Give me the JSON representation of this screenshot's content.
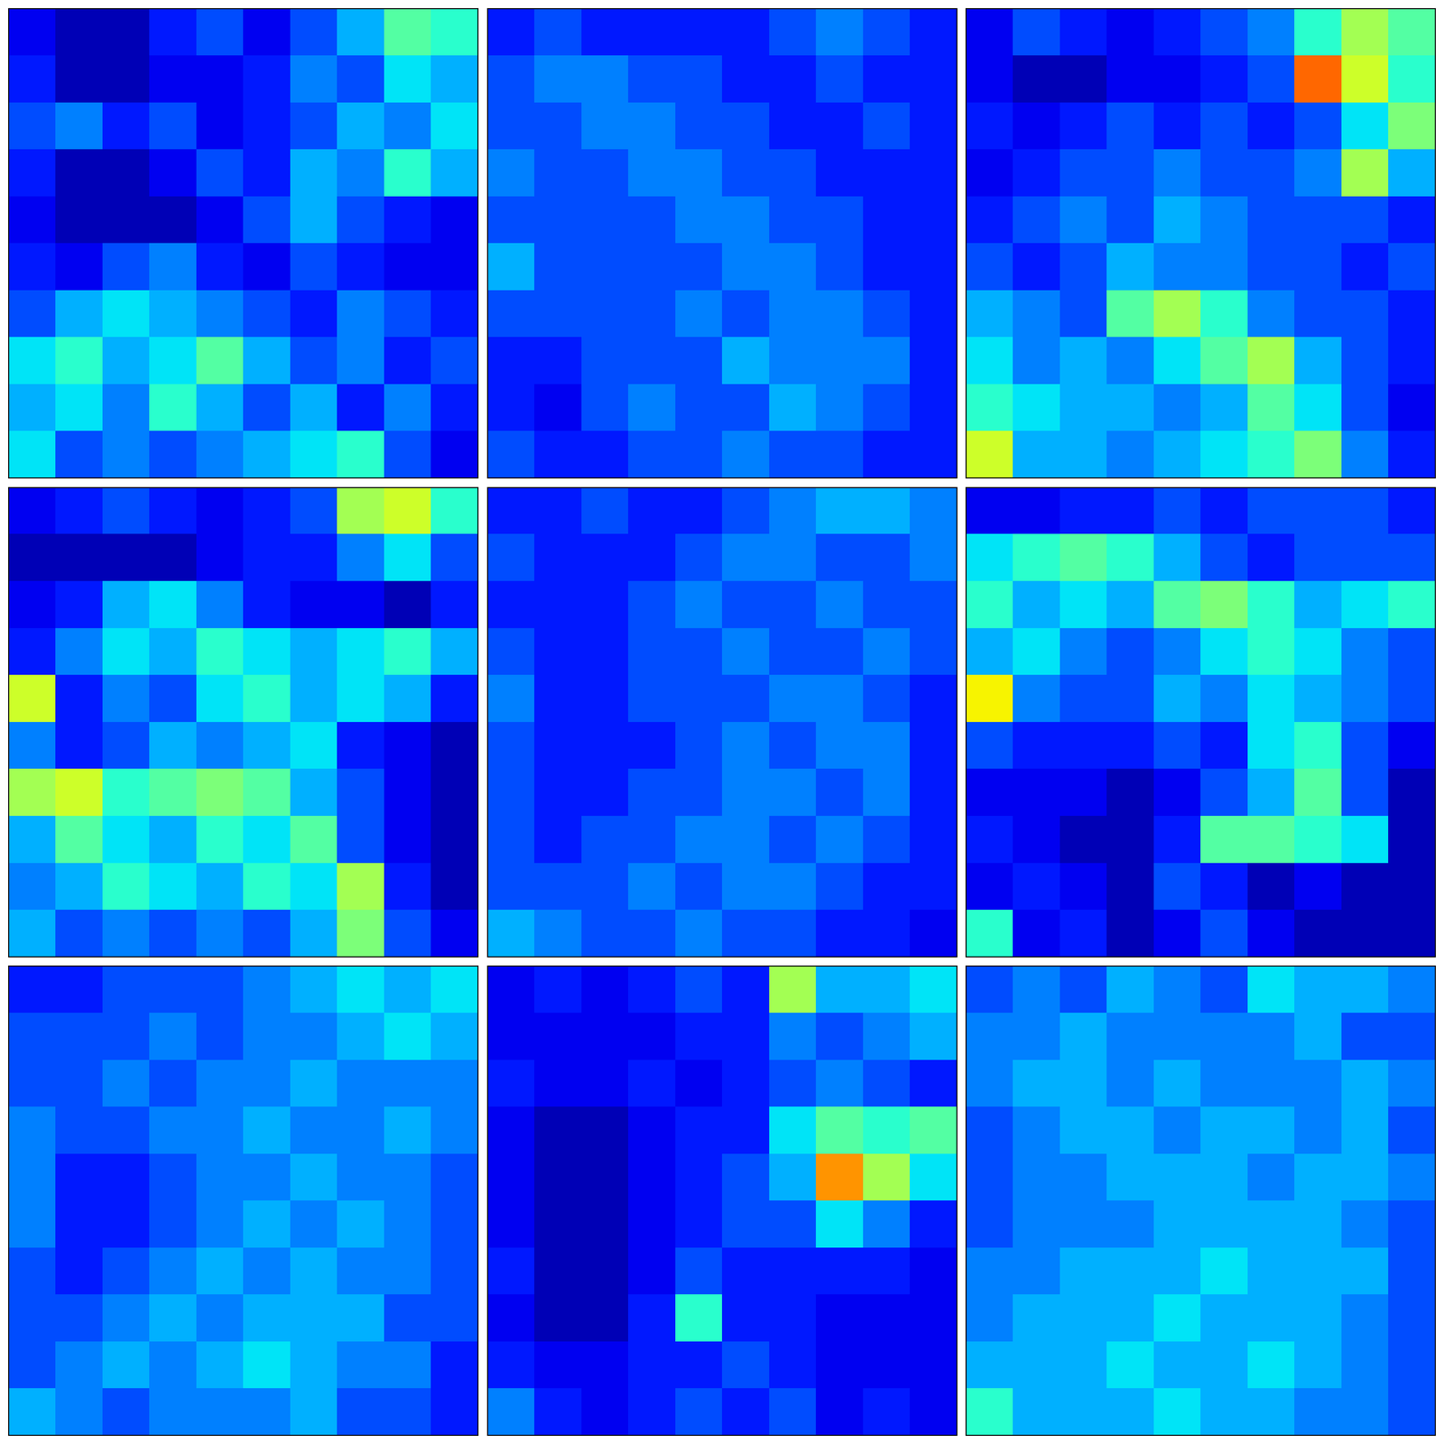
{
  "chart_data": [
    {
      "type": "heatmap",
      "tick_labels": false,
      "value_range": [
        0,
        1
      ],
      "cells": [
        [
          0.1,
          0.05,
          0.05,
          0.15,
          0.2,
          0.1,
          0.2,
          0.3,
          0.45,
          0.4
        ],
        [
          0.15,
          0.05,
          0.05,
          0.1,
          0.1,
          0.15,
          0.25,
          0.2,
          0.35,
          0.3
        ],
        [
          0.2,
          0.25,
          0.15,
          0.2,
          0.1,
          0.15,
          0.2,
          0.3,
          0.25,
          0.35
        ],
        [
          0.15,
          0.05,
          0.05,
          0.1,
          0.2,
          0.15,
          0.3,
          0.25,
          0.4,
          0.3
        ],
        [
          0.1,
          0.05,
          0.05,
          0.05,
          0.1,
          0.2,
          0.3,
          0.2,
          0.15,
          0.1
        ],
        [
          0.15,
          0.1,
          0.2,
          0.25,
          0.15,
          0.1,
          0.2,
          0.15,
          0.1,
          0.1
        ],
        [
          0.2,
          0.3,
          0.35,
          0.3,
          0.25,
          0.2,
          0.15,
          0.25,
          0.2,
          0.15
        ],
        [
          0.35,
          0.4,
          0.3,
          0.35,
          0.45,
          0.3,
          0.2,
          0.25,
          0.15,
          0.2
        ],
        [
          0.3,
          0.35,
          0.25,
          0.4,
          0.3,
          0.2,
          0.3,
          0.15,
          0.25,
          0.15
        ],
        [
          0.35,
          0.2,
          0.25,
          0.2,
          0.25,
          0.3,
          0.35,
          0.4,
          0.2,
          0.1
        ]
      ]
    },
    {
      "type": "heatmap",
      "tick_labels": false,
      "value_range": [
        0,
        1
      ],
      "cells": [
        [
          0.15,
          0.2,
          0.15,
          0.15,
          0.15,
          0.15,
          0.2,
          0.25,
          0.2,
          0.15
        ],
        [
          0.2,
          0.25,
          0.25,
          0.2,
          0.2,
          0.15,
          0.15,
          0.2,
          0.15,
          0.15
        ],
        [
          0.2,
          0.2,
          0.25,
          0.25,
          0.2,
          0.2,
          0.15,
          0.15,
          0.2,
          0.15
        ],
        [
          0.25,
          0.2,
          0.2,
          0.25,
          0.25,
          0.2,
          0.2,
          0.15,
          0.15,
          0.15
        ],
        [
          0.2,
          0.2,
          0.2,
          0.2,
          0.25,
          0.25,
          0.2,
          0.2,
          0.15,
          0.15
        ],
        [
          0.3,
          0.2,
          0.2,
          0.2,
          0.2,
          0.25,
          0.25,
          0.2,
          0.15,
          0.15
        ],
        [
          0.2,
          0.2,
          0.2,
          0.2,
          0.25,
          0.2,
          0.25,
          0.25,
          0.2,
          0.15
        ],
        [
          0.15,
          0.15,
          0.2,
          0.2,
          0.2,
          0.3,
          0.25,
          0.25,
          0.25,
          0.15
        ],
        [
          0.15,
          0.1,
          0.2,
          0.25,
          0.2,
          0.2,
          0.3,
          0.25,
          0.2,
          0.15
        ],
        [
          0.2,
          0.15,
          0.15,
          0.2,
          0.2,
          0.25,
          0.2,
          0.2,
          0.15,
          0.15
        ]
      ]
    },
    {
      "type": "heatmap",
      "tick_labels": false,
      "value_range": [
        0,
        1
      ],
      "cells": [
        [
          0.1,
          0.2,
          0.15,
          0.1,
          0.15,
          0.2,
          0.25,
          0.4,
          0.55,
          0.45
        ],
        [
          0.1,
          0.05,
          0.05,
          0.1,
          0.1,
          0.15,
          0.2,
          0.8,
          0.6,
          0.4
        ],
        [
          0.15,
          0.1,
          0.15,
          0.2,
          0.15,
          0.2,
          0.15,
          0.2,
          0.35,
          0.5
        ],
        [
          0.1,
          0.15,
          0.2,
          0.2,
          0.25,
          0.2,
          0.2,
          0.25,
          0.55,
          0.3
        ],
        [
          0.15,
          0.2,
          0.25,
          0.2,
          0.3,
          0.25,
          0.2,
          0.2,
          0.2,
          0.15
        ],
        [
          0.2,
          0.15,
          0.2,
          0.3,
          0.25,
          0.25,
          0.2,
          0.2,
          0.15,
          0.2
        ],
        [
          0.3,
          0.25,
          0.2,
          0.45,
          0.55,
          0.4,
          0.25,
          0.2,
          0.2,
          0.15
        ],
        [
          0.35,
          0.25,
          0.3,
          0.25,
          0.35,
          0.45,
          0.55,
          0.3,
          0.2,
          0.15
        ],
        [
          0.4,
          0.35,
          0.3,
          0.3,
          0.25,
          0.3,
          0.45,
          0.35,
          0.2,
          0.1
        ],
        [
          0.6,
          0.3,
          0.3,
          0.25,
          0.3,
          0.35,
          0.4,
          0.5,
          0.25,
          0.15
        ]
      ]
    },
    {
      "type": "heatmap",
      "tick_labels": false,
      "value_range": [
        0,
        1
      ],
      "cells": [
        [
          0.1,
          0.15,
          0.2,
          0.15,
          0.1,
          0.15,
          0.2,
          0.55,
          0.6,
          0.4
        ],
        [
          0.05,
          0.05,
          0.05,
          0.05,
          0.1,
          0.15,
          0.15,
          0.25,
          0.35,
          0.2
        ],
        [
          0.1,
          0.15,
          0.3,
          0.35,
          0.25,
          0.15,
          0.1,
          0.1,
          0.05,
          0.15
        ],
        [
          0.15,
          0.25,
          0.35,
          0.3,
          0.4,
          0.35,
          0.3,
          0.35,
          0.4,
          0.3
        ],
        [
          0.6,
          0.15,
          0.25,
          0.2,
          0.35,
          0.4,
          0.3,
          0.35,
          0.3,
          0.15
        ],
        [
          0.25,
          0.15,
          0.2,
          0.3,
          0.25,
          0.3,
          0.35,
          0.15,
          0.1,
          0.05
        ],
        [
          0.55,
          0.6,
          0.4,
          0.45,
          0.5,
          0.45,
          0.3,
          0.2,
          0.1,
          0.05
        ],
        [
          0.3,
          0.45,
          0.35,
          0.3,
          0.4,
          0.35,
          0.45,
          0.2,
          0.1,
          0.05
        ],
        [
          0.25,
          0.3,
          0.4,
          0.35,
          0.3,
          0.4,
          0.35,
          0.55,
          0.15,
          0.05
        ],
        [
          0.3,
          0.2,
          0.25,
          0.2,
          0.25,
          0.2,
          0.3,
          0.5,
          0.2,
          0.1
        ]
      ]
    },
    {
      "type": "heatmap",
      "tick_labels": false,
      "value_range": [
        0,
        1
      ],
      "cells": [
        [
          0.15,
          0.15,
          0.2,
          0.15,
          0.15,
          0.2,
          0.25,
          0.3,
          0.3,
          0.25
        ],
        [
          0.2,
          0.15,
          0.15,
          0.15,
          0.2,
          0.25,
          0.25,
          0.2,
          0.2,
          0.25
        ],
        [
          0.15,
          0.15,
          0.15,
          0.2,
          0.25,
          0.2,
          0.2,
          0.25,
          0.2,
          0.2
        ],
        [
          0.2,
          0.15,
          0.15,
          0.2,
          0.2,
          0.25,
          0.2,
          0.2,
          0.25,
          0.2
        ],
        [
          0.25,
          0.15,
          0.15,
          0.2,
          0.2,
          0.2,
          0.25,
          0.25,
          0.2,
          0.15
        ],
        [
          0.2,
          0.15,
          0.15,
          0.15,
          0.2,
          0.25,
          0.2,
          0.25,
          0.25,
          0.15
        ],
        [
          0.2,
          0.15,
          0.15,
          0.2,
          0.2,
          0.25,
          0.25,
          0.2,
          0.25,
          0.15
        ],
        [
          0.2,
          0.15,
          0.2,
          0.2,
          0.25,
          0.25,
          0.2,
          0.25,
          0.2,
          0.15
        ],
        [
          0.2,
          0.2,
          0.2,
          0.25,
          0.2,
          0.25,
          0.25,
          0.2,
          0.15,
          0.15
        ],
        [
          0.3,
          0.25,
          0.2,
          0.2,
          0.25,
          0.2,
          0.2,
          0.15,
          0.15,
          0.1
        ]
      ]
    },
    {
      "type": "heatmap",
      "tick_labels": false,
      "value_range": [
        0,
        1
      ],
      "cells": [
        [
          0.1,
          0.1,
          0.15,
          0.15,
          0.2,
          0.15,
          0.2,
          0.2,
          0.2,
          0.15
        ],
        [
          0.35,
          0.4,
          0.45,
          0.4,
          0.3,
          0.2,
          0.15,
          0.2,
          0.2,
          0.2
        ],
        [
          0.4,
          0.3,
          0.35,
          0.3,
          0.45,
          0.5,
          0.4,
          0.3,
          0.35,
          0.4
        ],
        [
          0.3,
          0.35,
          0.25,
          0.2,
          0.25,
          0.35,
          0.4,
          0.35,
          0.25,
          0.2
        ],
        [
          0.65,
          0.25,
          0.2,
          0.2,
          0.3,
          0.25,
          0.35,
          0.3,
          0.25,
          0.2
        ],
        [
          0.2,
          0.15,
          0.15,
          0.15,
          0.2,
          0.15,
          0.35,
          0.4,
          0.2,
          0.1
        ],
        [
          0.1,
          0.1,
          0.1,
          0.05,
          0.1,
          0.2,
          0.3,
          0.45,
          0.2,
          0.05
        ],
        [
          0.15,
          0.1,
          0.05,
          0.05,
          0.15,
          0.45,
          0.45,
          0.4,
          0.35,
          0.05
        ],
        [
          0.1,
          0.15,
          0.1,
          0.05,
          0.2,
          0.15,
          0.05,
          0.1,
          0.05,
          0.05
        ],
        [
          0.4,
          0.1,
          0.15,
          0.05,
          0.1,
          0.2,
          0.1,
          0.05,
          0.05,
          0.05
        ]
      ]
    },
    {
      "type": "heatmap",
      "tick_labels": false,
      "value_range": [
        0,
        1
      ],
      "cells": [
        [
          0.15,
          0.15,
          0.2,
          0.2,
          0.2,
          0.25,
          0.3,
          0.35,
          0.3,
          0.35
        ],
        [
          0.2,
          0.2,
          0.2,
          0.25,
          0.2,
          0.25,
          0.25,
          0.3,
          0.35,
          0.3
        ],
        [
          0.2,
          0.2,
          0.25,
          0.2,
          0.25,
          0.25,
          0.3,
          0.25,
          0.25,
          0.25
        ],
        [
          0.25,
          0.2,
          0.2,
          0.25,
          0.25,
          0.3,
          0.25,
          0.25,
          0.3,
          0.25
        ],
        [
          0.25,
          0.15,
          0.15,
          0.2,
          0.25,
          0.25,
          0.3,
          0.25,
          0.25,
          0.2
        ],
        [
          0.25,
          0.15,
          0.15,
          0.2,
          0.25,
          0.3,
          0.25,
          0.3,
          0.25,
          0.2
        ],
        [
          0.2,
          0.15,
          0.2,
          0.25,
          0.3,
          0.25,
          0.3,
          0.25,
          0.25,
          0.2
        ],
        [
          0.2,
          0.2,
          0.25,
          0.3,
          0.25,
          0.3,
          0.3,
          0.3,
          0.2,
          0.2
        ],
        [
          0.2,
          0.25,
          0.3,
          0.25,
          0.3,
          0.35,
          0.3,
          0.25,
          0.25,
          0.15
        ],
        [
          0.3,
          0.25,
          0.2,
          0.25,
          0.25,
          0.25,
          0.3,
          0.2,
          0.2,
          0.15
        ]
      ]
    },
    {
      "type": "heatmap",
      "tick_labels": false,
      "value_range": [
        0,
        1
      ],
      "cells": [
        [
          0.1,
          0.15,
          0.1,
          0.15,
          0.2,
          0.15,
          0.55,
          0.3,
          0.3,
          0.35
        ],
        [
          0.1,
          0.1,
          0.1,
          0.1,
          0.15,
          0.15,
          0.25,
          0.2,
          0.25,
          0.3
        ],
        [
          0.15,
          0.1,
          0.1,
          0.15,
          0.1,
          0.15,
          0.2,
          0.25,
          0.2,
          0.15
        ],
        [
          0.1,
          0.05,
          0.05,
          0.1,
          0.15,
          0.15,
          0.35,
          0.45,
          0.4,
          0.45
        ],
        [
          0.1,
          0.05,
          0.05,
          0.1,
          0.15,
          0.2,
          0.3,
          0.75,
          0.55,
          0.35
        ],
        [
          0.1,
          0.05,
          0.05,
          0.1,
          0.15,
          0.2,
          0.2,
          0.35,
          0.25,
          0.15
        ],
        [
          0.15,
          0.05,
          0.05,
          0.1,
          0.2,
          0.15,
          0.15,
          0.15,
          0.15,
          0.1
        ],
        [
          0.1,
          0.05,
          0.05,
          0.15,
          0.4,
          0.15,
          0.15,
          0.1,
          0.1,
          0.1
        ],
        [
          0.15,
          0.1,
          0.1,
          0.15,
          0.15,
          0.2,
          0.15,
          0.1,
          0.1,
          0.1
        ],
        [
          0.25,
          0.15,
          0.1,
          0.15,
          0.2,
          0.15,
          0.2,
          0.1,
          0.15,
          0.1
        ]
      ]
    },
    {
      "type": "heatmap",
      "tick_labels": false,
      "value_range": [
        0,
        1
      ],
      "cells": [
        [
          0.2,
          0.25,
          0.2,
          0.3,
          0.25,
          0.2,
          0.35,
          0.3,
          0.3,
          0.25
        ],
        [
          0.25,
          0.25,
          0.3,
          0.25,
          0.25,
          0.25,
          0.25,
          0.3,
          0.2,
          0.2
        ],
        [
          0.25,
          0.3,
          0.3,
          0.25,
          0.3,
          0.25,
          0.25,
          0.25,
          0.3,
          0.25
        ],
        [
          0.2,
          0.25,
          0.3,
          0.3,
          0.25,
          0.3,
          0.3,
          0.25,
          0.3,
          0.2
        ],
        [
          0.2,
          0.25,
          0.25,
          0.3,
          0.3,
          0.3,
          0.25,
          0.3,
          0.3,
          0.25
        ],
        [
          0.2,
          0.25,
          0.25,
          0.25,
          0.3,
          0.3,
          0.3,
          0.3,
          0.25,
          0.2
        ],
        [
          0.25,
          0.25,
          0.3,
          0.3,
          0.3,
          0.35,
          0.3,
          0.3,
          0.3,
          0.2
        ],
        [
          0.25,
          0.3,
          0.3,
          0.3,
          0.35,
          0.3,
          0.3,
          0.3,
          0.25,
          0.2
        ],
        [
          0.3,
          0.3,
          0.3,
          0.35,
          0.3,
          0.3,
          0.35,
          0.3,
          0.25,
          0.2
        ],
        [
          0.4,
          0.3,
          0.3,
          0.3,
          0.35,
          0.3,
          0.3,
          0.25,
          0.25,
          0.2
        ]
      ]
    }
  ]
}
